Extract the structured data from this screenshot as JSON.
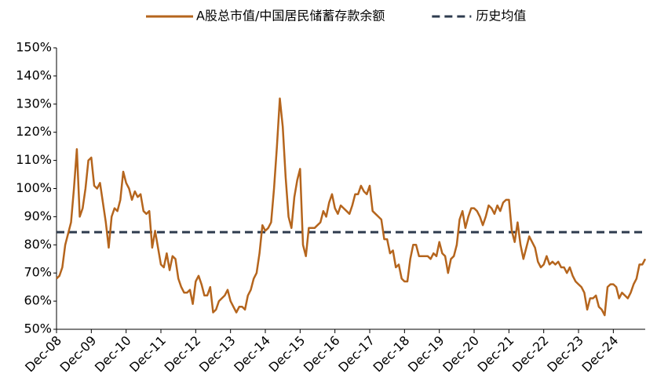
{
  "chart_data": {
    "type": "line",
    "categories": [
      "Dec-08",
      null,
      null,
      null,
      null,
      null,
      null,
      null,
      null,
      null,
      null,
      null,
      "Dec-09",
      null,
      null,
      null,
      null,
      null,
      null,
      null,
      null,
      null,
      null,
      null,
      "Dec-10",
      null,
      null,
      null,
      null,
      null,
      null,
      null,
      null,
      null,
      null,
      null,
      "Dec-11",
      null,
      null,
      null,
      null,
      null,
      null,
      null,
      null,
      null,
      null,
      null,
      "Dec-12",
      null,
      null,
      null,
      null,
      null,
      null,
      null,
      null,
      null,
      null,
      null,
      "Dec-13",
      null,
      null,
      null,
      null,
      null,
      null,
      null,
      null,
      null,
      null,
      null,
      "Dec-14",
      null,
      null,
      null,
      null,
      null,
      null,
      null,
      null,
      null,
      null,
      null,
      "Dec-15",
      null,
      null,
      null,
      null,
      null,
      null,
      null,
      null,
      null,
      null,
      null,
      "Dec-16",
      null,
      null,
      null,
      null,
      null,
      null,
      null,
      null,
      null,
      null,
      null,
      "Dec-17",
      null,
      null,
      null,
      null,
      null,
      null,
      null,
      null,
      null,
      null,
      null,
      "Dec-18",
      null,
      null,
      null,
      null,
      null,
      null,
      null,
      null,
      null,
      null,
      null,
      "Dec-19",
      null,
      null,
      null,
      null,
      null,
      null,
      null,
      null,
      null,
      null,
      null,
      "Dec-20",
      null,
      null,
      null,
      null,
      null,
      null,
      null,
      null,
      null,
      null,
      null,
      "Dec-21",
      null,
      null,
      null,
      null,
      null,
      null,
      null,
      null,
      null,
      null,
      null,
      "Dec-22",
      null,
      null,
      null,
      null,
      null,
      null,
      null,
      null,
      null,
      null,
      null,
      "Dec-23",
      null,
      null,
      null,
      null,
      null,
      null,
      null,
      null,
      null,
      null,
      null,
      "Dec-24",
      null,
      null,
      null,
      null,
      null,
      null,
      null,
      null,
      null,
      null,
      null
    ],
    "series": [
      {
        "name": "A股总市值/中国居民储蓄存款余额",
        "color": "#b5651d",
        "values": [
          68,
          69,
          72,
          80,
          84,
          88,
          100,
          114,
          90,
          93,
          100,
          110,
          111,
          101,
          100,
          102,
          95,
          88,
          79,
          90,
          93,
          92,
          96,
          106,
          102,
          100,
          96,
          99,
          97,
          98,
          92,
          91,
          92,
          79,
          85,
          79,
          73,
          72,
          77,
          71,
          76,
          75,
          68,
          65,
          63,
          63,
          64,
          59,
          67,
          69,
          66,
          62,
          62,
          65,
          56,
          57,
          60,
          61,
          62,
          64,
          60,
          58,
          56,
          58,
          58,
          57,
          62,
          64,
          68,
          70,
          77,
          87,
          85,
          86,
          88,
          100,
          115,
          132,
          122,
          104,
          90,
          86,
          97,
          103,
          107,
          80,
          76,
          86,
          86,
          86,
          87,
          88,
          92,
          90,
          95,
          98,
          93,
          91,
          94,
          93,
          92,
          91,
          94,
          98,
          98,
          101,
          99,
          98,
          101,
          92,
          91,
          90,
          89,
          82,
          82,
          77,
          78,
          72,
          73,
          68,
          67,
          67,
          75,
          80,
          80,
          76,
          76,
          76,
          76,
          75,
          77,
          76,
          81,
          77,
          76,
          70,
          75,
          76,
          80,
          89,
          92,
          86,
          90,
          93,
          93,
          92,
          90,
          87,
          90,
          94,
          93,
          91,
          94,
          92,
          95,
          96,
          96,
          85,
          81,
          88,
          80,
          75,
          79,
          83,
          81,
          79,
          74,
          72,
          73,
          76,
          73,
          74,
          73,
          74,
          72,
          72,
          70,
          72,
          69,
          67,
          66,
          65,
          63,
          57,
          61,
          61,
          62,
          58,
          57,
          55,
          65,
          66,
          66,
          65,
          61,
          63,
          62,
          61,
          63,
          66,
          68,
          73,
          73,
          75
        ]
      }
    ],
    "hlines": [
      {
        "name": "历史均值",
        "value": 84.5,
        "color": "#2e3b4e",
        "dashed": true
      }
    ],
    "ylim": [
      50,
      150
    ],
    "yticks": [
      {
        "value": 50,
        "label": "50%"
      },
      {
        "value": 60,
        "label": "60%"
      },
      {
        "value": 70,
        "label": "70%"
      },
      {
        "value": 80,
        "label": "80%"
      },
      {
        "value": 90,
        "label": "90%"
      },
      {
        "value": 100,
        "label": "100%"
      },
      {
        "value": 110,
        "label": "110%"
      },
      {
        "value": 120,
        "label": "120%"
      },
      {
        "value": 130,
        "label": "130%"
      },
      {
        "value": 140,
        "label": "140%"
      },
      {
        "value": 150,
        "label": "150%"
      }
    ],
    "grid": false,
    "legend": "top"
  }
}
